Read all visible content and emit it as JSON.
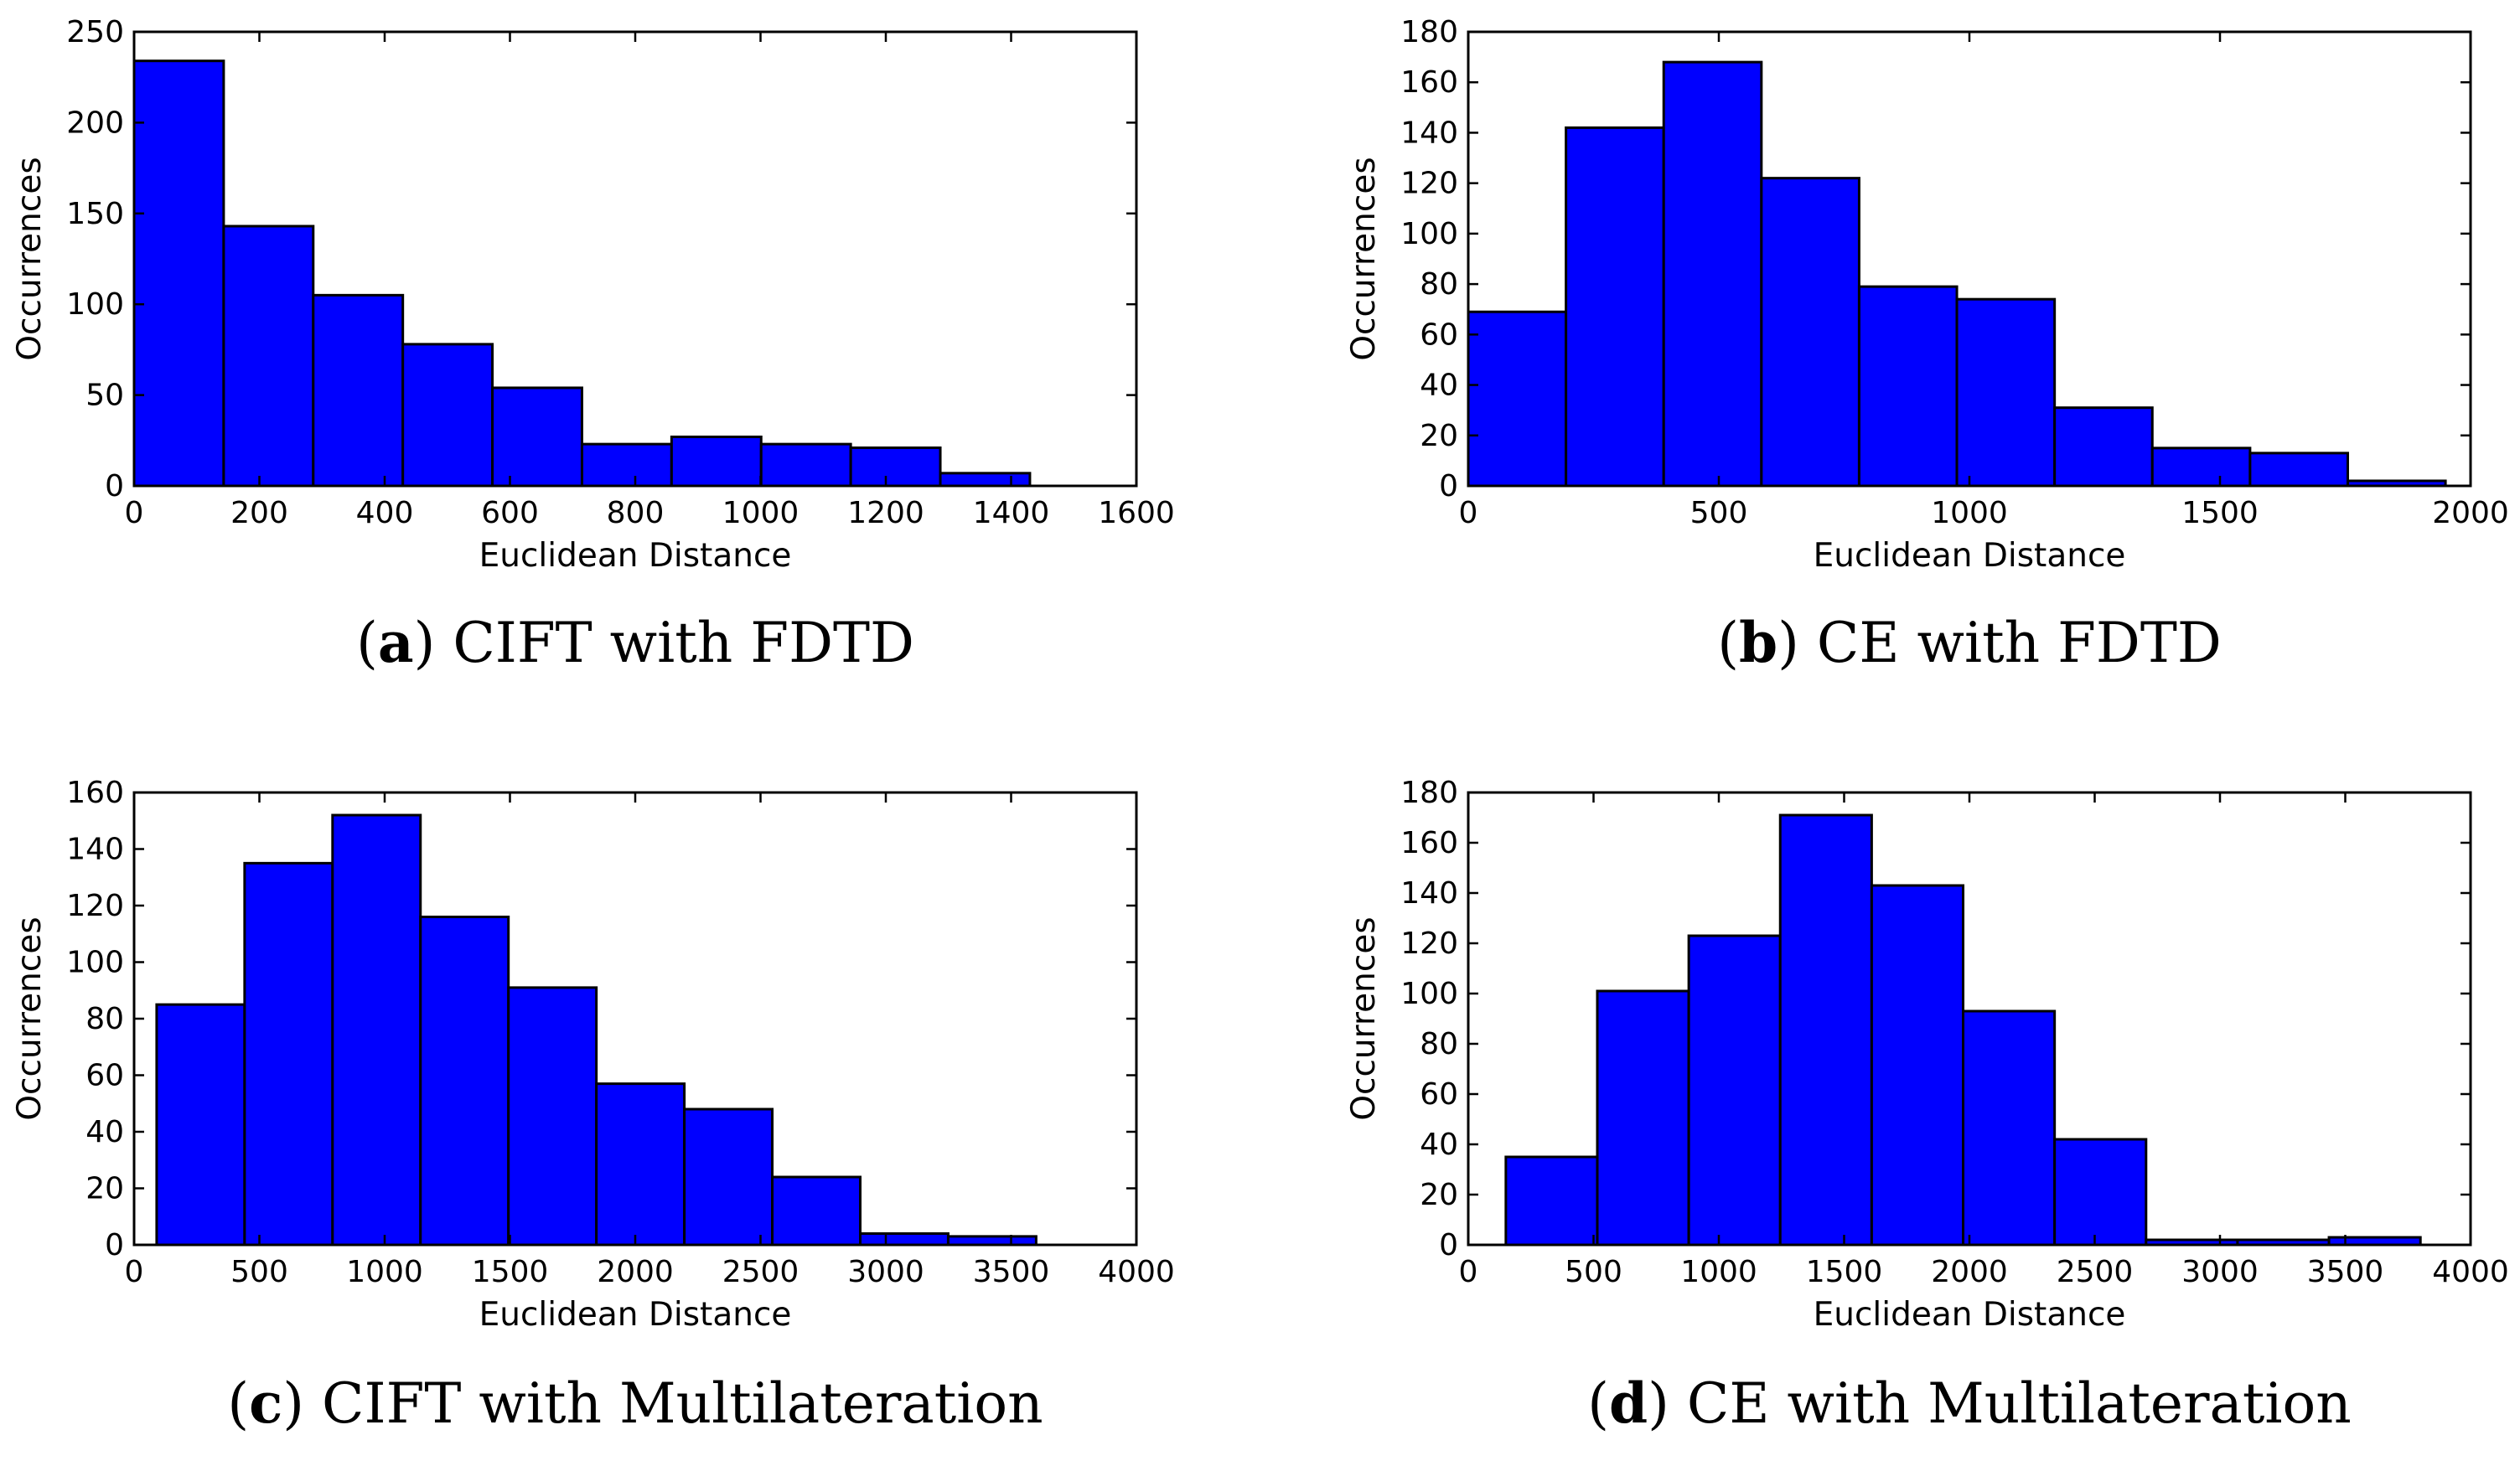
{
  "figure": {
    "bar_color": "#0000ff",
    "edge_color": "#000000"
  },
  "chart_data": [
    {
      "type": "bar",
      "id": "a",
      "caption_letter": "a",
      "caption_text": "CIFT with FDTD",
      "xlabel": "Euclidean Distance",
      "ylabel": "Occurrences",
      "xlim": [
        0,
        1600
      ],
      "ylim": [
        0,
        250
      ],
      "xticks": [
        0,
        200,
        400,
        600,
        800,
        1000,
        1200,
        1400,
        1600
      ],
      "xtick_labels": [
        "0",
        "200",
        "400",
        "600",
        "800",
        "1000",
        "1200",
        "1400",
        "1600"
      ],
      "yticks": [
        0,
        50,
        100,
        150,
        200,
        250
      ],
      "ytick_labels": [
        "0",
        "50",
        "100",
        "150",
        "200",
        "250"
      ],
      "bin_edges": [
        0,
        143,
        286,
        429,
        572,
        715,
        858,
        1001,
        1144,
        1287,
        1430
      ],
      "values": [
        234,
        143,
        105,
        78,
        54,
        23,
        27,
        23,
        21,
        7
      ]
    },
    {
      "type": "bar",
      "id": "b",
      "caption_letter": "b",
      "caption_text": "CE with FDTD",
      "xlabel": "Euclidean Distance",
      "ylabel": "Occurrences",
      "xlim": [
        0,
        2000
      ],
      "ylim": [
        0,
        180
      ],
      "xticks": [
        0,
        500,
        1000,
        1500,
        2000
      ],
      "xtick_labels": [
        "0",
        "500",
        "1000",
        "1500",
        "2000"
      ],
      "yticks": [
        0,
        20,
        40,
        60,
        80,
        100,
        120,
        140,
        160,
        180
      ],
      "ytick_labels": [
        "0",
        "20",
        "40",
        "60",
        "80",
        "100",
        "120",
        "140",
        "160",
        "180"
      ],
      "bin_edges": [
        0,
        195,
        390,
        585,
        780,
        975,
        1170,
        1365,
        1560,
        1755,
        1950
      ],
      "values": [
        69,
        142,
        168,
        122,
        79,
        74,
        31,
        15,
        13,
        2
      ]
    },
    {
      "type": "bar",
      "id": "c",
      "caption_letter": "c",
      "caption_text": "CIFT with Multilateration",
      "xlabel": "Euclidean Distance",
      "ylabel": "Occurrences",
      "xlim": [
        0,
        4000
      ],
      "ylim": [
        0,
        160
      ],
      "xticks": [
        0,
        500,
        1000,
        1500,
        2000,
        2500,
        3000,
        3500,
        4000
      ],
      "xtick_labels": [
        "0",
        "500",
        "1000",
        "1500",
        "2000",
        "2500",
        "3000",
        "3500",
        "4000"
      ],
      "yticks": [
        0,
        20,
        40,
        60,
        80,
        100,
        120,
        140,
        160
      ],
      "ytick_labels": [
        "0",
        "20",
        "40",
        "60",
        "80",
        "100",
        "120",
        "140",
        "160"
      ],
      "bin_edges": [
        90,
        441,
        792,
        1143,
        1494,
        1845,
        2196,
        2547,
        2898,
        3249,
        3600
      ],
      "values": [
        85,
        135,
        152,
        116,
        91,
        57,
        48,
        24,
        4,
        3
      ]
    },
    {
      "type": "bar",
      "id": "d",
      "caption_letter": "d",
      "caption_text": "CE with Multilateration",
      "xlabel": "Euclidean Distance",
      "ylabel": "Occurrences",
      "xlim": [
        0,
        4000
      ],
      "ylim": [
        0,
        180
      ],
      "xticks": [
        0,
        500,
        1000,
        1500,
        2000,
        2500,
        3000,
        3500,
        4000
      ],
      "xtick_labels": [
        "0",
        "500",
        "1000",
        "1500",
        "2000",
        "2500",
        "3000",
        "3500",
        "4000"
      ],
      "yticks": [
        0,
        20,
        40,
        60,
        80,
        100,
        120,
        140,
        160,
        180
      ],
      "ytick_labels": [
        "0",
        "20",
        "40",
        "60",
        "80",
        "100",
        "120",
        "140",
        "160",
        "180"
      ],
      "bin_edges": [
        150,
        515,
        880,
        1245,
        1610,
        1975,
        2340,
        2705,
        3070,
        3435,
        3800
      ],
      "values": [
        35,
        101,
        123,
        171,
        143,
        93,
        42,
        2,
        2,
        3
      ]
    }
  ]
}
